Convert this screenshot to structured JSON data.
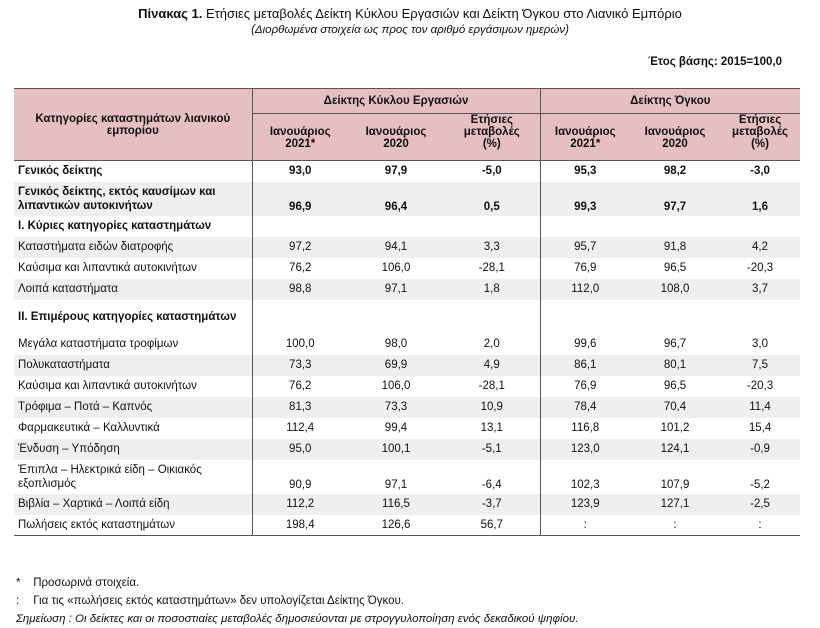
{
  "title_bold": "Πίνακας 1.",
  "title_rest": " Ετήσιες μεταβολές Δείκτη Κύκλου Εργασιών και Δείκτη Όγκου στο Λιανικό Εμπόριο",
  "subtitle": "(Διορθωμένα στοιχεία ως προς τον αριθμό εργάσιμων ημερών)",
  "base_year": "Έτος βάσης: 2015=100,0",
  "header": {
    "category": "Κατηγορίες καταστημάτων λιανικού εμπορίου",
    "group1": "Δείκτης Κύκλου Εργασιών",
    "group2": "Δείκτης Όγκου",
    "col_a1": "Ιανουάριος",
    "col_a2": "2021*",
    "col_b1": "Ιανουάριος",
    "col_b2": "2020",
    "col_c1": "Ετήσιες",
    "col_c2": "μεταβολές",
    "col_c3": "(%)"
  },
  "rows": [
    {
      "label": "Γενικός δείκτης",
      "v": [
        "93,0",
        "97,9",
        "-5,0",
        "95,3",
        "98,2",
        "-3,0"
      ]
    },
    {
      "label": "Γενικός δείκτης, εκτός καυσίμων και λιπαντικών αυτοκινήτων",
      "v": [
        "96,9",
        "96,4",
        "0,5",
        "99,3",
        "97,7",
        "1,6"
      ]
    },
    {
      "label": "I. Κύριες κατηγορίες καταστημάτων",
      "v": [
        "",
        "",
        "",
        "",
        "",
        ""
      ]
    },
    {
      "label": "Καταστήματα ειδών διατροφής",
      "v": [
        "97,2",
        "94,1",
        "3,3",
        "95,7",
        "91,8",
        "4,2"
      ]
    },
    {
      "label": "Καύσιμα και λιπαντικά αυτοκινήτων",
      "v": [
        "76,2",
        "106,0",
        "-28,1",
        "76,9",
        "96,5",
        "-20,3"
      ]
    },
    {
      "label": "Λοιπά καταστήματα",
      "v": [
        "98,8",
        "97,1",
        "1,8",
        "112,0",
        "108,0",
        "3,7"
      ]
    },
    {
      "label": "II. Επιμέρους κατηγορίες καταστημάτων",
      "v": [
        "",
        "",
        "",
        "",
        "",
        ""
      ]
    },
    {
      "label": "Μεγάλα καταστήματα τροφίμων",
      "v": [
        "100,0",
        "98,0",
        "2,0",
        "99,6",
        "96,7",
        "3,0"
      ]
    },
    {
      "label": "Πολυκαταστήματα",
      "v": [
        "73,3",
        "69,9",
        "4,9",
        "86,1",
        "80,1",
        "7,5"
      ]
    },
    {
      "label": "Καύσιμα και λιπαντικά αυτοκινήτων",
      "v": [
        "76,2",
        "106,0",
        "-28,1",
        "76,9",
        "96,5",
        "-20,3"
      ]
    },
    {
      "label": "Τρόφιμα – Ποτά – Καπνός",
      "v": [
        "81,3",
        "73,3",
        "10,9",
        "78,4",
        "70,4",
        "11,4"
      ]
    },
    {
      "label": "Φαρμακευτικά – Καλλυντικά",
      "v": [
        "112,4",
        "99,4",
        "13,1",
        "116,8",
        "101,2",
        "15,4"
      ]
    },
    {
      "label": "Ένδυση – Υπόδηση",
      "v": [
        "95,0",
        "100,1",
        "-5,1",
        "123,0",
        "124,1",
        "-0,9"
      ]
    },
    {
      "label": "Έπιπλα – Ηλεκτρικά είδη – Οικιακός εξοπλισμός",
      "v": [
        "90,9",
        "97,1",
        "-6,4",
        "102,3",
        "107,9",
        "-5,2"
      ]
    },
    {
      "label": "Βιβλία – Χαρτικά – Λοιπά είδη",
      "v": [
        "112,2",
        "116,5",
        "-3,7",
        "123,9",
        "127,1",
        "-2,5"
      ]
    },
    {
      "label": "Πωλήσεις εκτός καταστημάτων",
      "v": [
        "198,4",
        "126,6",
        "56,7",
        ":",
        ":",
        ":"
      ]
    }
  ],
  "notes": {
    "n1_mark": "*",
    "n1_text": "Προσωρινά στοιχεία.",
    "n2_mark": ":",
    "n2_text": "Για τις «πωλήσεις εκτός καταστημάτων» δεν υπολογίζεται Δείκτης Όγκου.",
    "n3": "Σημείωση : Οι δείκτες και οι ποσοστιαίες μεταβολές δημοσιεύονται με στρογγυλοποίηση ενός δεκαδικού ψηφίου."
  }
}
